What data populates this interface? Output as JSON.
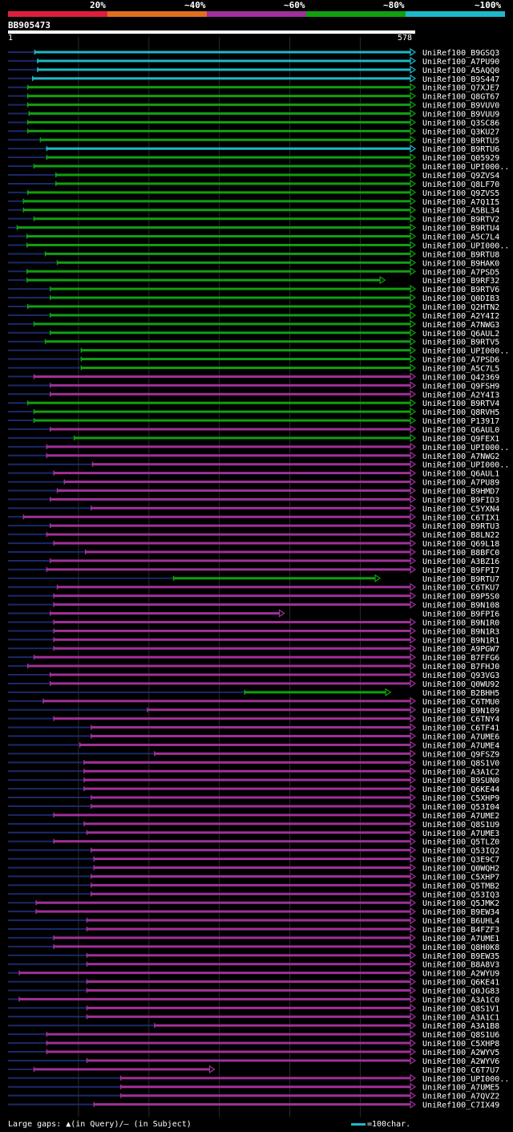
{
  "title": "BB905473",
  "legend": {
    "labels": [
      "20%",
      "~40%",
      "~60%",
      "~80%",
      "~100%"
    ],
    "colors": [
      "#e01e3c",
      "#e07020",
      "#a0309a",
      "#10a010",
      "#1fb8c8"
    ]
  },
  "ruler": {
    "start": "1",
    "end": "578"
  },
  "footer": {
    "gaps": "Large gaps: ▲(in Query)/– (in Subject)",
    "scale": "=100char."
  },
  "chart_data": {
    "type": "alignment",
    "title": "BB905473",
    "query_length": 578,
    "color_scale": {
      "1": "#e01e3c",
      "2": "#e07020",
      "3": "#a0309a",
      "4": "#10a010",
      "5": "#1fb8c8"
    },
    "hits": [
      {
        "id": "UniRef100_B9GSQ3",
        "s": 38,
        "e": 578,
        "c": 5
      },
      {
        "id": "UniRef100_A7PU90",
        "s": 42,
        "e": 578,
        "c": 5
      },
      {
        "id": "UniRef100_A5AQQ0",
        "s": 42,
        "e": 578,
        "c": 5
      },
      {
        "id": "UniRef100_B9S447",
        "s": 35,
        "e": 578,
        "c": 5
      },
      {
        "id": "UniRef100_Q7XJE7",
        "s": 28,
        "e": 578,
        "c": 4
      },
      {
        "id": "UniRef100_Q8GT67",
        "s": 28,
        "e": 578,
        "c": 4
      },
      {
        "id": "UniRef100_B9VUV0",
        "s": 28,
        "e": 578,
        "c": 4
      },
      {
        "id": "UniRef100_B9VUU9",
        "s": 30,
        "e": 578,
        "c": 4
      },
      {
        "id": "UniRef100_Q3SC86",
        "s": 28,
        "e": 578,
        "c": 4
      },
      {
        "id": "UniRef100_Q3KU27",
        "s": 28,
        "e": 578,
        "c": 4
      },
      {
        "id": "UniRef100_B9RTU5",
        "s": 46,
        "e": 578,
        "c": 4
      },
      {
        "id": "UniRef100_B9RTU6",
        "s": 55,
        "e": 578,
        "c": 5
      },
      {
        "id": "UniRef100_Q05929",
        "s": 55,
        "e": 578,
        "c": 4
      },
      {
        "id": "UniRef100_UPI000..",
        "s": 37,
        "e": 578,
        "c": 4
      },
      {
        "id": "UniRef100_Q9ZVS4",
        "s": 68,
        "e": 578,
        "c": 4
      },
      {
        "id": "UniRef100_Q8LF70",
        "s": 68,
        "e": 578,
        "c": 4
      },
      {
        "id": "UniRef100_Q9ZVS5",
        "s": 28,
        "e": 578,
        "c": 4
      },
      {
        "id": "UniRef100_A7Q1I5",
        "s": 22,
        "e": 578,
        "c": 4
      },
      {
        "id": "UniRef100_A5BL34",
        "s": 22,
        "e": 578,
        "c": 4
      },
      {
        "id": "UniRef100_B9RTV2",
        "s": 37,
        "e": 578,
        "c": 4
      },
      {
        "id": "UniRef100_B9RTU4",
        "s": 13,
        "e": 578,
        "c": 4
      },
      {
        "id": "UniRef100_A5C7L4",
        "s": 27,
        "e": 578,
        "c": 4
      },
      {
        "id": "UniRef100_UPI000..",
        "s": 27,
        "e": 578,
        "c": 4
      },
      {
        "id": "UniRef100_B9RTU8",
        "s": 53,
        "e": 578,
        "c": 4
      },
      {
        "id": "UniRef100_B9HAK0",
        "s": 70,
        "e": 578,
        "c": 4
      },
      {
        "id": "UniRef100_A7PSD5",
        "s": 27,
        "e": 578,
        "c": 4
      },
      {
        "id": "UniRef100_B9RF32",
        "s": 27,
        "e": 535,
        "c": 4
      },
      {
        "id": "UniRef100_B9RTV6",
        "s": 60,
        "e": 578,
        "c": 4
      },
      {
        "id": "UniRef100_Q0DIB3",
        "s": 60,
        "e": 578,
        "c": 4
      },
      {
        "id": "UniRef100_Q2HTN2",
        "s": 28,
        "e": 578,
        "c": 4
      },
      {
        "id": "UniRef100_A2Y4I2",
        "s": 60,
        "e": 578,
        "c": 4
      },
      {
        "id": "UniRef100_A7NWG3",
        "s": 37,
        "e": 578,
        "c": 4
      },
      {
        "id": "UniRef100_Q6AUL2",
        "s": 60,
        "e": 578,
        "c": 4
      },
      {
        "id": "UniRef100_B9RTV5",
        "s": 53,
        "e": 578,
        "c": 4
      },
      {
        "id": "UniRef100_UPI000..",
        "s": 104,
        "e": 578,
        "c": 4
      },
      {
        "id": "UniRef100_A7PSD6",
        "s": 104,
        "e": 578,
        "c": 4
      },
      {
        "id": "UniRef100_A5C7L5",
        "s": 104,
        "e": 578,
        "c": 4
      },
      {
        "id": "UniRef100_Q42369",
        "s": 37,
        "e": 578,
        "c": 3
      },
      {
        "id": "UniRef100_Q9FSH9",
        "s": 60,
        "e": 578,
        "c": 3
      },
      {
        "id": "UniRef100_A2Y4I3",
        "s": 60,
        "e": 578,
        "c": 3
      },
      {
        "id": "UniRef100_B9RTV4",
        "s": 28,
        "e": 578,
        "c": 4
      },
      {
        "id": "UniRef100_Q8RVH5",
        "s": 37,
        "e": 578,
        "c": 4
      },
      {
        "id": "UniRef100_P13917",
        "s": 37,
        "e": 578,
        "c": 4
      },
      {
        "id": "UniRef100_Q6AUL0",
        "s": 60,
        "e": 578,
        "c": 3
      },
      {
        "id": "UniRef100_Q9FEX1",
        "s": 94,
        "e": 578,
        "c": 4
      },
      {
        "id": "UniRef100_UPI000..",
        "s": 55,
        "e": 578,
        "c": 3
      },
      {
        "id": "UniRef100_A7NWG2",
        "s": 55,
        "e": 578,
        "c": 3
      },
      {
        "id": "UniRef100_UPI000..",
        "s": 120,
        "e": 578,
        "c": 3
      },
      {
        "id": "UniRef100_Q6AUL1",
        "s": 65,
        "e": 578,
        "c": 3
      },
      {
        "id": "UniRef100_A7PU89",
        "s": 80,
        "e": 578,
        "c": 3
      },
      {
        "id": "UniRef100_B9HMD7",
        "s": 70,
        "e": 578,
        "c": 3
      },
      {
        "id": "UniRef100_B9FID3",
        "s": 60,
        "e": 578,
        "c": 3
      },
      {
        "id": "UniRef100_C5YXN4",
        "s": 118,
        "e": 578,
        "c": 3
      },
      {
        "id": "UniRef100_C6TIX1",
        "s": 22,
        "e": 578,
        "c": 3
      },
      {
        "id": "UniRef100_B9RTU3",
        "s": 60,
        "e": 578,
        "c": 3
      },
      {
        "id": "UniRef100_B8LN22",
        "s": 55,
        "e": 578,
        "c": 3
      },
      {
        "id": "UniRef100_Q69L18",
        "s": 65,
        "e": 578,
        "c": 3
      },
      {
        "id": "UniRef100_B8BFC0",
        "s": 110,
        "e": 578,
        "c": 3
      },
      {
        "id": "UniRef100_A3BZ16",
        "s": 60,
        "e": 578,
        "c": 3
      },
      {
        "id": "UniRef100_B9FPI7",
        "s": 55,
        "e": 578,
        "c": 3
      },
      {
        "id": "UniRef100_B9RTU7",
        "s": 235,
        "e": 528,
        "c": 4
      },
      {
        "id": "UniRef100_C6TKU7",
        "s": 70,
        "e": 578,
        "c": 3
      },
      {
        "id": "UniRef100_B9P5S0",
        "s": 65,
        "e": 578,
        "c": 3
      },
      {
        "id": "UniRef100_B9N108",
        "s": 65,
        "e": 578,
        "c": 3
      },
      {
        "id": "UniRef100_B9FPI6",
        "s": 60,
        "e": 392,
        "c": 3
      },
      {
        "id": "UniRef100_B9N1R0",
        "s": 65,
        "e": 578,
        "c": 3
      },
      {
        "id": "UniRef100_B9N1R3",
        "s": 65,
        "e": 578,
        "c": 3
      },
      {
        "id": "UniRef100_B9N1R1",
        "s": 65,
        "e": 578,
        "c": 3
      },
      {
        "id": "UniRef100_A9PGW7",
        "s": 65,
        "e": 578,
        "c": 3
      },
      {
        "id": "UniRef100_B7FFG6",
        "s": 37,
        "e": 578,
        "c": 3
      },
      {
        "id": "UniRef100_B7FHJ0",
        "s": 28,
        "e": 578,
        "c": 3
      },
      {
        "id": "UniRef100_Q93VG3",
        "s": 60,
        "e": 578,
        "c": 3
      },
      {
        "id": "UniRef100_Q0WU92",
        "s": 60,
        "e": 578,
        "c": 3
      },
      {
        "id": "UniRef100_B2BHH5",
        "s": 336,
        "e": 543,
        "c": 4
      },
      {
        "id": "UniRef100_C6TMU0",
        "s": 50,
        "e": 578,
        "c": 3
      },
      {
        "id": "UniRef100_B9N109",
        "s": 198,
        "e": 578,
        "c": 3
      },
      {
        "id": "UniRef100_C6TNY4",
        "s": 65,
        "e": 578,
        "c": 3
      },
      {
        "id": "UniRef100_C6TF41",
        "s": 118,
        "e": 578,
        "c": 3
      },
      {
        "id": "UniRef100_A7UME6",
        "s": 118,
        "e": 578,
        "c": 3
      },
      {
        "id": "UniRef100_A7UME4",
        "s": 102,
        "e": 578,
        "c": 3
      },
      {
        "id": "UniRef100_Q9FSZ9",
        "s": 208,
        "e": 578,
        "c": 3
      },
      {
        "id": "UniRef100_Q8S1V0",
        "s": 108,
        "e": 578,
        "c": 3
      },
      {
        "id": "UniRef100_A3A1C2",
        "s": 108,
        "e": 578,
        "c": 3
      },
      {
        "id": "UniRef100_B9SUN0",
        "s": 108,
        "e": 578,
        "c": 3
      },
      {
        "id": "UniRef100_Q6KE44",
        "s": 108,
        "e": 578,
        "c": 3
      },
      {
        "id": "UniRef100_C5XHP9",
        "s": 118,
        "e": 578,
        "c": 3
      },
      {
        "id": "UniRef100_Q53I04",
        "s": 118,
        "e": 578,
        "c": 3
      },
      {
        "id": "UniRef100_A7UME2",
        "s": 65,
        "e": 578,
        "c": 3
      },
      {
        "id": "UniRef100_Q8S1U9",
        "s": 108,
        "e": 578,
        "c": 3
      },
      {
        "id": "UniRef100_A7UME3",
        "s": 112,
        "e": 578,
        "c": 3
      },
      {
        "id": "UniRef100_Q5TLZ0",
        "s": 65,
        "e": 578,
        "c": 3
      },
      {
        "id": "UniRef100_Q53IQ2",
        "s": 118,
        "e": 578,
        "c": 3
      },
      {
        "id": "UniRef100_Q3E9C7",
        "s": 122,
        "e": 578,
        "c": 3
      },
      {
        "id": "UniRef100_Q0WQH2",
        "s": 122,
        "e": 578,
        "c": 3
      },
      {
        "id": "UniRef100_C5XHP7",
        "s": 118,
        "e": 578,
        "c": 3
      },
      {
        "id": "UniRef100_Q5TMB2",
        "s": 118,
        "e": 578,
        "c": 3
      },
      {
        "id": "UniRef100_Q53IQ3",
        "s": 118,
        "e": 578,
        "c": 3
      },
      {
        "id": "UniRef100_Q5JMK2",
        "s": 40,
        "e": 578,
        "c": 3
      },
      {
        "id": "UniRef100_B9EW34",
        "s": 40,
        "e": 578,
        "c": 3
      },
      {
        "id": "UniRef100_B6UHL4",
        "s": 112,
        "e": 578,
        "c": 3
      },
      {
        "id": "UniRef100_B4FZF3",
        "s": 112,
        "e": 578,
        "c": 3
      },
      {
        "id": "UniRef100_A7UME1",
        "s": 65,
        "e": 578,
        "c": 3
      },
      {
        "id": "UniRef100_Q8H0K8",
        "s": 65,
        "e": 578,
        "c": 3
      },
      {
        "id": "UniRef100_B9EW35",
        "s": 112,
        "e": 578,
        "c": 3
      },
      {
        "id": "UniRef100_B8A8V3",
        "s": 112,
        "e": 578,
        "c": 3
      },
      {
        "id": "UniRef100_A2WYU9",
        "s": 16,
        "e": 578,
        "c": 3
      },
      {
        "id": "UniRef100_Q6KE41",
        "s": 112,
        "e": 578,
        "c": 3
      },
      {
        "id": "UniRef100_Q0JG83",
        "s": 112,
        "e": 578,
        "c": 3
      },
      {
        "id": "UniRef100_A3A1C0",
        "s": 16,
        "e": 578,
        "c": 3
      },
      {
        "id": "UniRef100_Q8S1V1",
        "s": 112,
        "e": 578,
        "c": 3
      },
      {
        "id": "UniRef100_A3A1C1",
        "s": 112,
        "e": 578,
        "c": 3
      },
      {
        "id": "UniRef100_A3A1B8",
        "s": 208,
        "e": 578,
        "c": 3
      },
      {
        "id": "UniRef100_Q8S1U6",
        "s": 55,
        "e": 578,
        "c": 3
      },
      {
        "id": "UniRef100_C5XHP8",
        "s": 55,
        "e": 578,
        "c": 3
      },
      {
        "id": "UniRef100_A2WYV5",
        "s": 55,
        "e": 578,
        "c": 3
      },
      {
        "id": "UniRef100_A2WYV6",
        "s": 112,
        "e": 578,
        "c": 3
      },
      {
        "id": "UniRef100_C6T7U7",
        "s": 37,
        "e": 293,
        "c": 3
      },
      {
        "id": "UniRef100_UPI000..",
        "s": 160,
        "e": 578,
        "c": 3
      },
      {
        "id": "UniRef100_A7UME5",
        "s": 160,
        "e": 578,
        "c": 3
      },
      {
        "id": "UniRef100_A7QVZ2",
        "s": 160,
        "e": 578,
        "c": 3
      },
      {
        "id": "UniRef100_C7IX49",
        "s": 122,
        "e": 578,
        "c": 3
      }
    ]
  }
}
